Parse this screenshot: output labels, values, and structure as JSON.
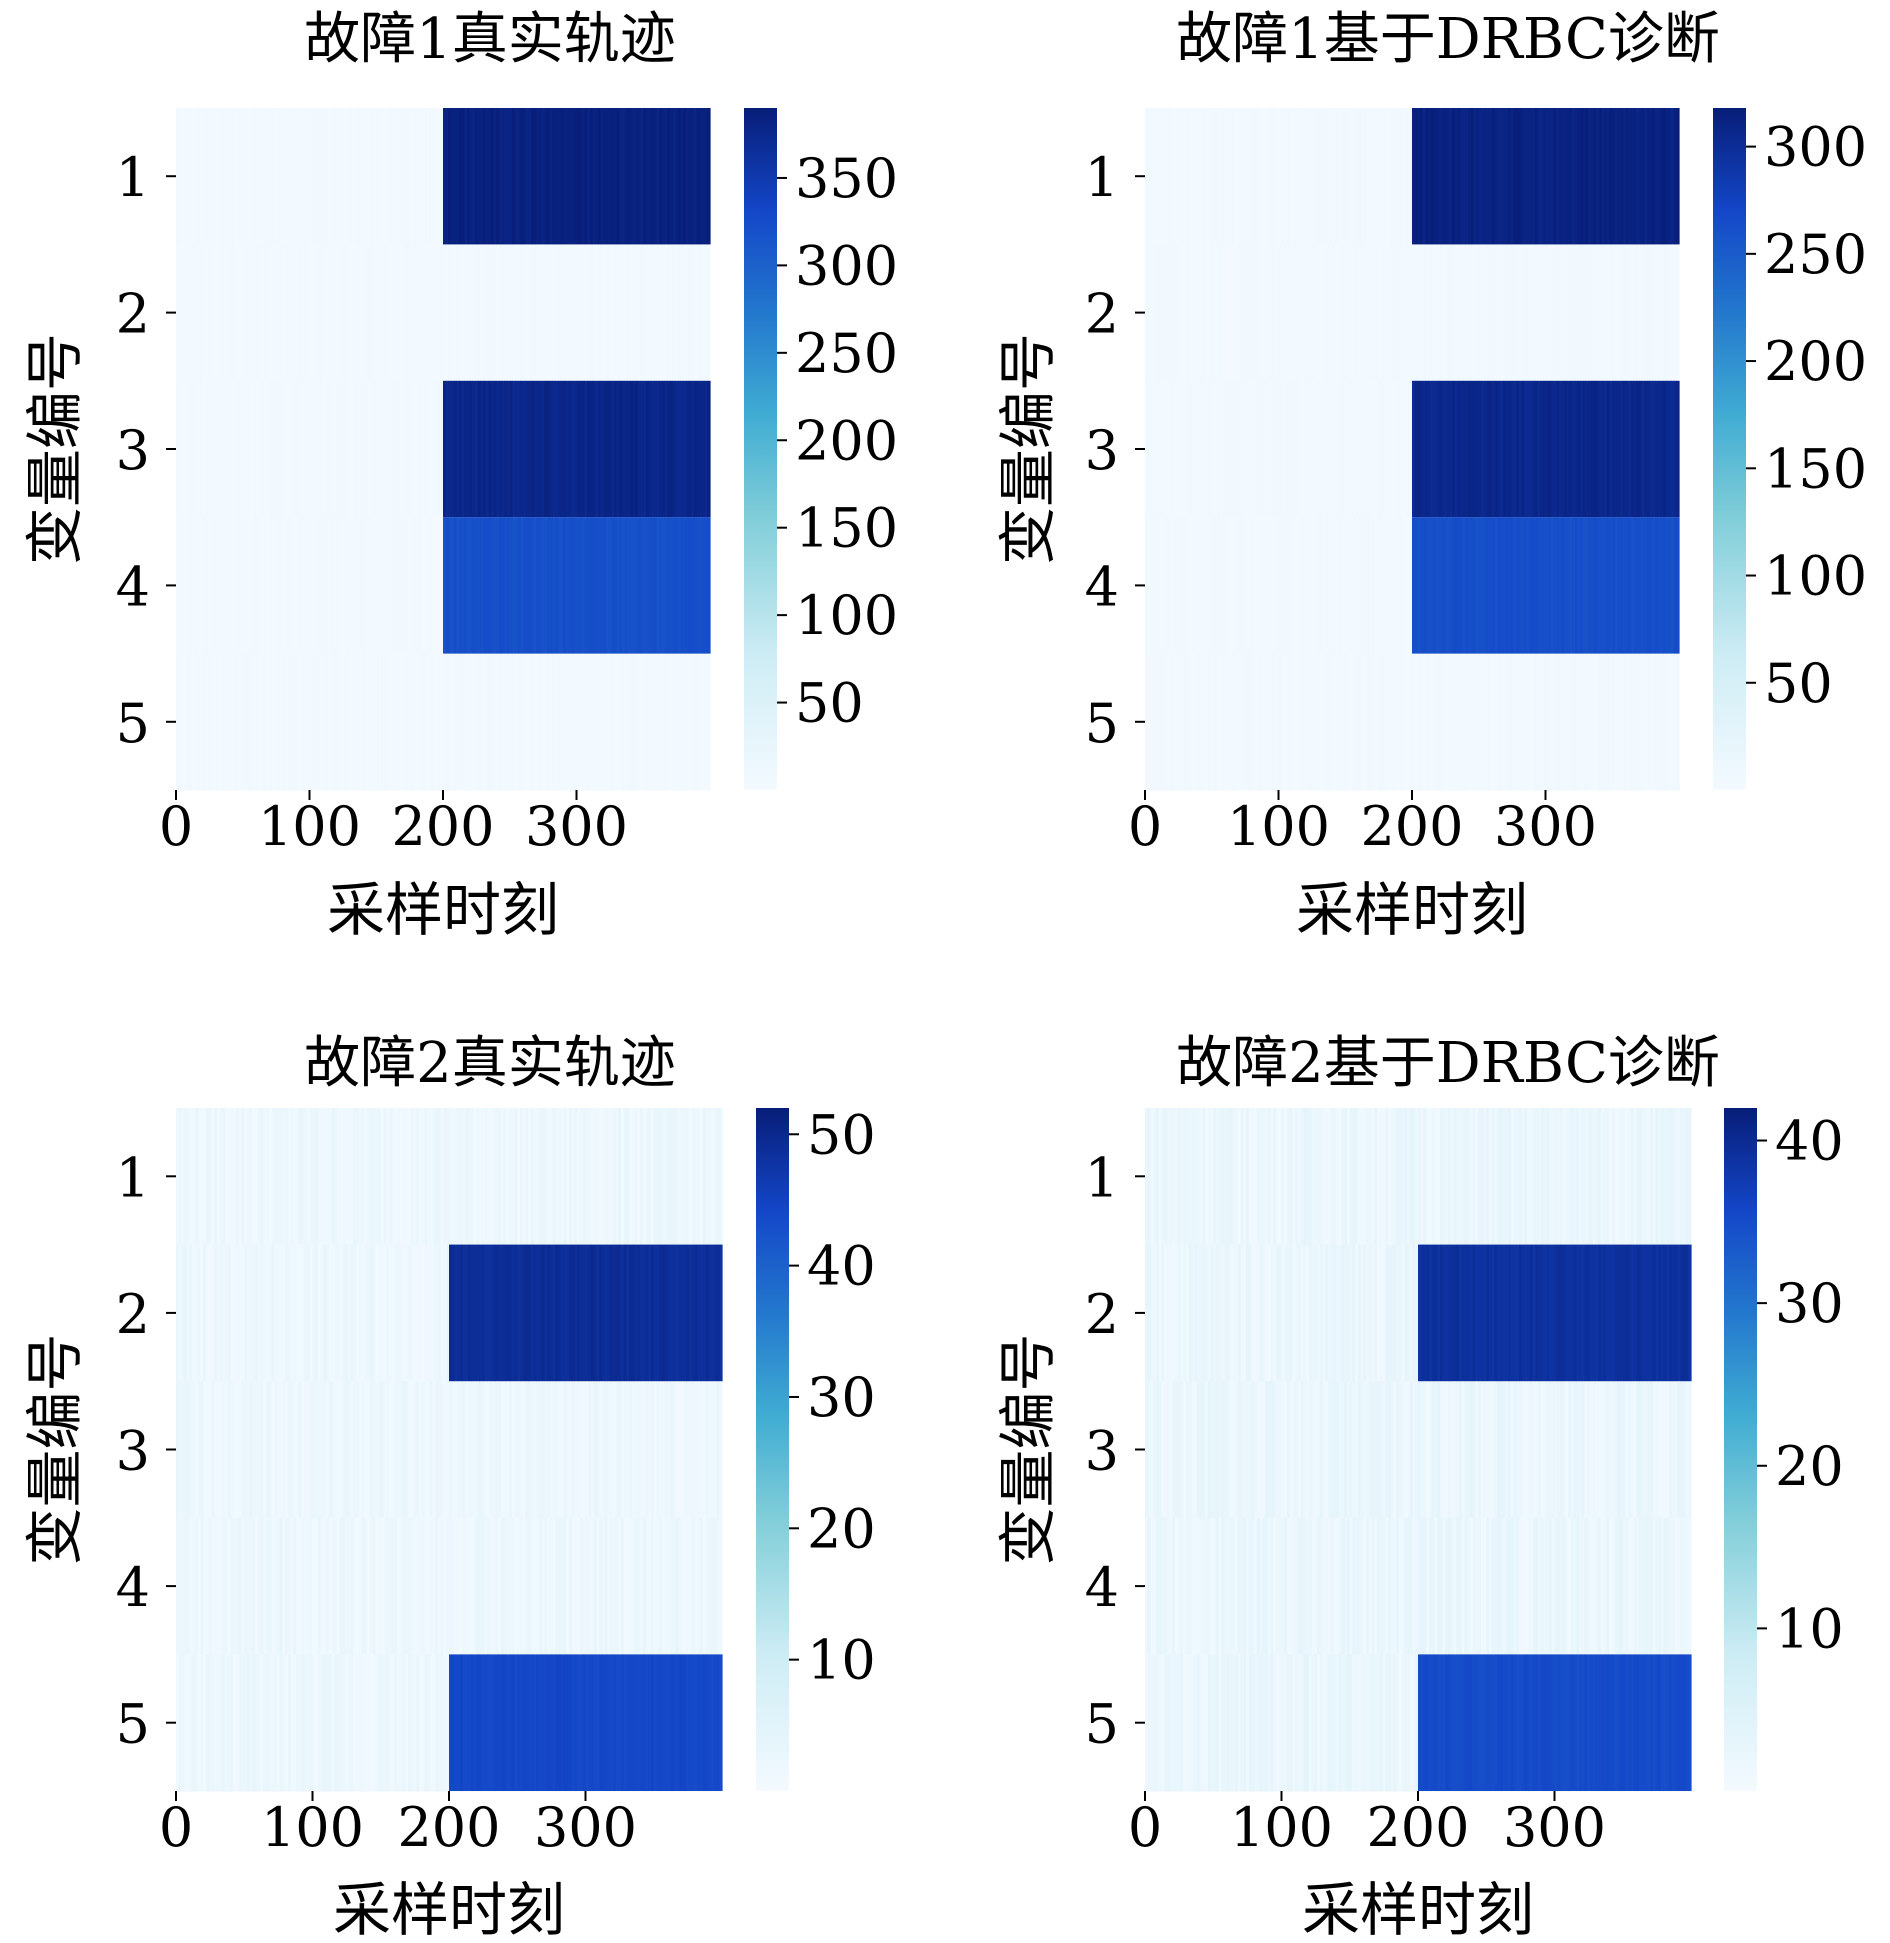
{
  "chart_data": [
    {
      "type": "heatmap",
      "title": "故障1真实轨迹",
      "xlabel": "采样时刻",
      "ylabel": "变量编号",
      "x_range": [
        0,
        400
      ],
      "x_ticks": [
        0,
        100,
        200,
        300
      ],
      "y_categories": [
        "1",
        "2",
        "3",
        "4",
        "5"
      ],
      "colormap": "Blues",
      "colorbar_range": [
        0,
        390
      ],
      "colorbar_ticks": [
        50,
        100,
        150,
        200,
        250,
        300,
        350
      ],
      "blocks": [
        {
          "variable": "1",
          "x_start": 200,
          "x_end": 400,
          "value": 385
        },
        {
          "variable": "3",
          "x_start": 200,
          "x_end": 400,
          "value": 378
        },
        {
          "variable": "4",
          "x_start": 200,
          "x_end": 400,
          "value": 320
        }
      ],
      "background_value": 3
    },
    {
      "type": "heatmap",
      "title": "故障1基于DRBC诊断",
      "xlabel": "采样时刻",
      "ylabel": "变量编号",
      "x_range": [
        0,
        400
      ],
      "x_ticks": [
        0,
        100,
        200,
        300
      ],
      "y_categories": [
        "1",
        "2",
        "3",
        "4",
        "5"
      ],
      "colormap": "Blues",
      "colorbar_range": [
        0,
        318
      ],
      "colorbar_ticks": [
        50,
        100,
        150,
        200,
        250,
        300
      ],
      "blocks": [
        {
          "variable": "1",
          "x_start": 200,
          "x_end": 400,
          "value": 313
        },
        {
          "variable": "3",
          "x_start": 200,
          "x_end": 400,
          "value": 306
        },
        {
          "variable": "4",
          "x_start": 200,
          "x_end": 400,
          "value": 262
        }
      ],
      "background_value": 3
    },
    {
      "type": "heatmap",
      "title": "故障2真实轨迹",
      "xlabel": "采样时刻",
      "ylabel": "变量编号",
      "x_range": [
        0,
        400
      ],
      "x_ticks": [
        0,
        100,
        200,
        300
      ],
      "y_categories": [
        "1",
        "2",
        "3",
        "4",
        "5"
      ],
      "colormap": "Blues",
      "colorbar_range": [
        0,
        52
      ],
      "colorbar_ticks": [
        10,
        20,
        30,
        40,
        50
      ],
      "blocks": [
        {
          "variable": "2",
          "x_start": 200,
          "x_end": 400,
          "value": 49
        },
        {
          "variable": "5",
          "x_start": 200,
          "x_end": 400,
          "value": 44
        }
      ],
      "background_value": 2
    },
    {
      "type": "heatmap",
      "title": "故障2基于DRBC诊断",
      "xlabel": "采样时刻",
      "ylabel": "变量编号",
      "x_range": [
        0,
        400
      ],
      "x_ticks": [
        0,
        100,
        200,
        300
      ],
      "y_categories": [
        "1",
        "2",
        "3",
        "4",
        "5"
      ],
      "colormap": "Blues",
      "colorbar_range": [
        0,
        42
      ],
      "colorbar_ticks": [
        10,
        20,
        30,
        40
      ],
      "blocks": [
        {
          "variable": "2",
          "x_start": 200,
          "x_end": 400,
          "value": 39
        },
        {
          "variable": "5",
          "x_start": 200,
          "x_end": 400,
          "value": 35
        }
      ],
      "background_value": 2
    }
  ]
}
